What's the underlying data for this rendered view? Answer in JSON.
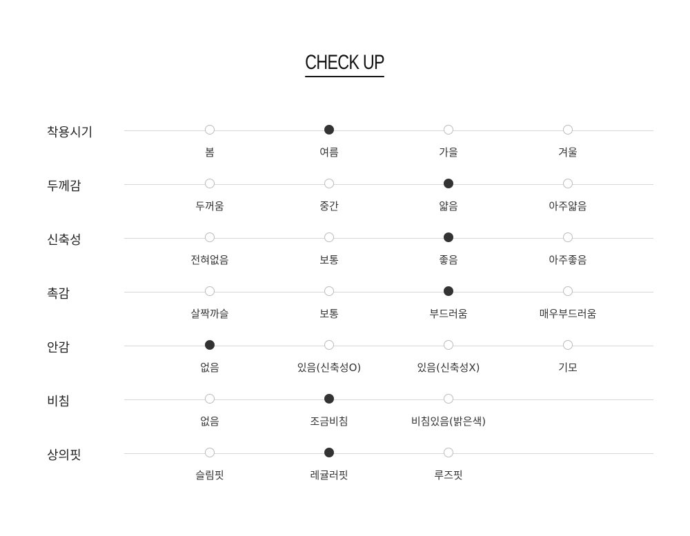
{
  "title": "CHECK UP",
  "rows": [
    {
      "label": "착용시기",
      "options": [
        "봄",
        "여름",
        "가을",
        "겨울"
      ],
      "selected": 1
    },
    {
      "label": "두께감",
      "options": [
        "두꺼움",
        "중간",
        "얇음",
        "아주얇음"
      ],
      "selected": 2
    },
    {
      "label": "신축성",
      "options": [
        "전혀없음",
        "보통",
        "좋음",
        "아주좋음"
      ],
      "selected": 2
    },
    {
      "label": "촉감",
      "options": [
        "살짝까슬",
        "보통",
        "부드러움",
        "매우부드러움"
      ],
      "selected": 2
    },
    {
      "label": "안감",
      "options": [
        "없음",
        "있음(신축성O)",
        "있음(신축성X)",
        "기모"
      ],
      "selected": 0
    },
    {
      "label": "비침",
      "options": [
        "없음",
        "조금비침",
        "비침있음(밝은색)"
      ],
      "selected": 1
    },
    {
      "label": "상의핏",
      "options": [
        "슬림핏",
        "레귤러핏",
        "루즈핏"
      ],
      "selected": 1
    }
  ],
  "colors": {
    "selected": "#333333",
    "line": "#d6d6d6"
  }
}
